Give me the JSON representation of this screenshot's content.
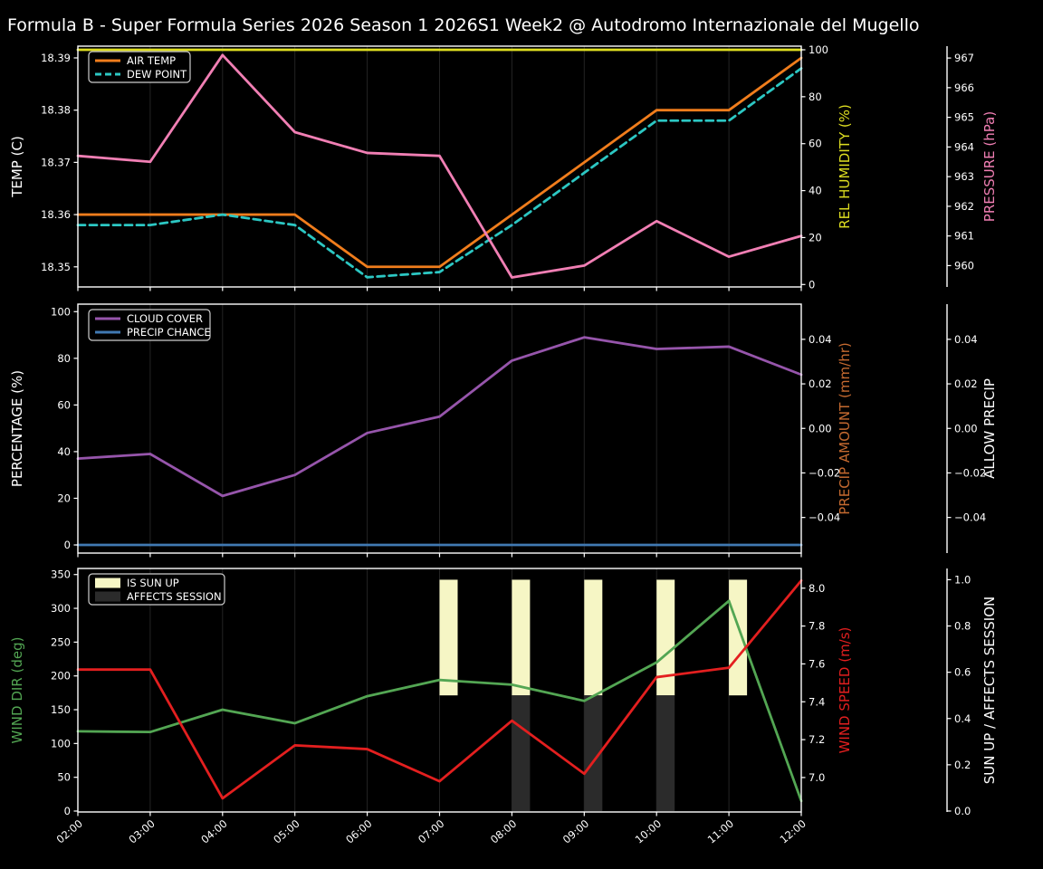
{
  "title": "Formula B - Super Formula Series 2026 Season 1 2026S1 Week2 @ Autodromo Internazionale del Mugello",
  "x_axis": {
    "hours": [
      2,
      3,
      4,
      5,
      6,
      7,
      8,
      9,
      10,
      11,
      12
    ],
    "labels": [
      "02:00",
      "03:00",
      "04:00",
      "05:00",
      "06:00",
      "07:00",
      "08:00",
      "09:00",
      "10:00",
      "11:00",
      "12:00"
    ]
  },
  "colors": {
    "background": "#000000",
    "text": "#ffffff",
    "grid": "#242424",
    "air_temp": "#f07d1c",
    "dew_point": "#2cc7c3",
    "rel_humidity": "#dede21",
    "pressure": "#f17fb4",
    "cloud_cover": "#9655ab",
    "precip_chance": "#4079b2",
    "precip_amount": "#c56a30",
    "wind_dir": "#53a653",
    "wind_speed": "#e31f1f",
    "sun_up_bar": "#f6f6c5",
    "affects_session_bar": "#2b2b2b"
  },
  "chart_data": [
    {
      "type": "line",
      "id": "temperature-panel",
      "x": [
        "02:00",
        "03:00",
        "04:00",
        "05:00",
        "06:00",
        "07:00",
        "08:00",
        "09:00",
        "10:00",
        "11:00",
        "12:00"
      ],
      "axes": {
        "left": {
          "id": "temp",
          "label": "TEMP (C)",
          "color": "#ffffff",
          "range": [
            18.34615,
            18.39225
          ],
          "ticks": [
            {
              "v": 18.35,
              "t": "18.35"
            },
            {
              "v": 18.36,
              "t": "18.36"
            },
            {
              "v": 18.37,
              "t": "18.37"
            },
            {
              "v": 18.38,
              "t": "18.38"
            },
            {
              "v": 18.39,
              "t": "18.39"
            }
          ]
        },
        "right": {
          "id": "humidity",
          "label": "REL HUMIDITY (%)",
          "color": "#dede21",
          "range": [
            -1.04,
            101.54
          ],
          "ticks": [
            {
              "v": 0,
              "t": "0"
            },
            {
              "v": 20,
              "t": "20"
            },
            {
              "v": 40,
              "t": "40"
            },
            {
              "v": 60,
              "t": "60"
            },
            {
              "v": 80,
              "t": "80"
            },
            {
              "v": 100,
              "t": "100"
            }
          ]
        },
        "far": {
          "id": "pressure",
          "label": "PRESSURE (hPa)",
          "color": "#f17fb4",
          "range": [
            959.28,
            967.4
          ],
          "ticks": [
            {
              "v": 960,
              "t": "960"
            },
            {
              "v": 961,
              "t": "961"
            },
            {
              "v": 962,
              "t": "962"
            },
            {
              "v": 963,
              "t": "963"
            },
            {
              "v": 964,
              "t": "964"
            },
            {
              "v": 965,
              "t": "965"
            },
            {
              "v": 966,
              "t": "966"
            },
            {
              "v": 967,
              "t": "967"
            }
          ]
        }
      },
      "series": [
        {
          "name": "AIR TEMP",
          "slug": "air-temp",
          "axis": "left",
          "color": "#f07d1c",
          "dash": false,
          "values": [
            18.36,
            18.36,
            18.36,
            18.36,
            18.35,
            18.35,
            18.36,
            18.37,
            18.38,
            18.38,
            18.39
          ]
        },
        {
          "name": "DEW POINT",
          "slug": "dew-point",
          "axis": "left",
          "color": "#2cc7c3",
          "dash": true,
          "values": [
            18.358,
            18.358,
            18.36,
            18.358,
            18.348,
            18.349,
            18.358,
            18.368,
            18.378,
            18.378,
            18.388
          ]
        },
        {
          "name": "REL HUMIDITY",
          "slug": "rel-humidity",
          "axis": "right",
          "color": "#dede21",
          "dash": false,
          "values": [
            100,
            100,
            100,
            100,
            100,
            100,
            100,
            100,
            100,
            100,
            100
          ]
        },
        {
          "name": "PRESSURE",
          "slug": "pressure",
          "axis": "far",
          "color": "#f17fb4",
          "dash": false,
          "values": [
            963.7,
            963.5,
            967.1,
            964.5,
            963.8,
            963.7,
            959.6,
            960.0,
            961.5,
            960.3,
            961.0
          ]
        }
      ],
      "legend": {
        "items": [
          {
            "label": "AIR TEMP",
            "swatch": "line",
            "color": "#f07d1c",
            "dash": false
          },
          {
            "label": "DEW POINT",
            "swatch": "line",
            "color": "#2cc7c3",
            "dash": true
          }
        ],
        "position": "upper-left",
        "width": 112
      },
      "bars": []
    },
    {
      "type": "line",
      "id": "precipitation-panel",
      "x": [
        "02:00",
        "03:00",
        "04:00",
        "05:00",
        "06:00",
        "07:00",
        "08:00",
        "09:00",
        "10:00",
        "11:00",
        "12:00"
      ],
      "axes": {
        "left": {
          "id": "percentage",
          "label": "PERCENTAGE (%)",
          "color": "#ffffff",
          "range": [
            -3.49,
            103.22
          ],
          "ticks": [
            {
              "v": 0,
              "t": "0"
            },
            {
              "v": 20,
              "t": "20"
            },
            {
              "v": 40,
              "t": "40"
            },
            {
              "v": 60,
              "t": "60"
            },
            {
              "v": 80,
              "t": "80"
            },
            {
              "v": 100,
              "t": "100"
            }
          ]
        },
        "right": {
          "id": "precip-amount",
          "label": "PRECIP AMOUNT (mm/hr)",
          "color": "#c56a30",
          "range": [
            -0.056,
            0.0558
          ],
          "ticks": [
            {
              "v": -0.04,
              "t": "−0.04"
            },
            {
              "v": -0.02,
              "t": "−0.02"
            },
            {
              "v": 0,
              "t": "0.00"
            },
            {
              "v": 0.02,
              "t": "0.02"
            },
            {
              "v": 0.04,
              "t": "0.04"
            }
          ]
        },
        "far": {
          "id": "allow-precip",
          "label": "ALLOW PRECIP",
          "color": "#ffffff",
          "range": [
            -0.056,
            0.0558
          ],
          "ticks": [
            {
              "v": -0.04,
              "t": "−0.04"
            },
            {
              "v": -0.02,
              "t": "−0.02"
            },
            {
              "v": 0,
              "t": "0.00"
            },
            {
              "v": 0.02,
              "t": "0.02"
            },
            {
              "v": 0.04,
              "t": "0.04"
            }
          ]
        }
      },
      "series": [
        {
          "name": "CLOUD COVER",
          "slug": "cloud-cover",
          "axis": "left",
          "color": "#9655ab",
          "dash": false,
          "values": [
            37,
            39,
            21,
            30,
            48,
            55,
            79,
            89,
            84,
            85,
            73
          ]
        },
        {
          "name": "PRECIP CHANCE",
          "slug": "precip-chance",
          "axis": "left",
          "color": "#4079b2",
          "dash": false,
          "values": [
            0,
            0,
            0,
            0,
            0,
            0,
            0,
            0,
            0,
            0,
            0
          ]
        }
      ],
      "legend": {
        "items": [
          {
            "label": "CLOUD COVER",
            "swatch": "line",
            "color": "#9655ab",
            "dash": false
          },
          {
            "label": "PRECIP CHANCE",
            "swatch": "line",
            "color": "#4079b2",
            "dash": false
          }
        ],
        "position": "upper-left",
        "width": 134
      },
      "bars": []
    },
    {
      "type": "line",
      "id": "wind-panel",
      "x": [
        "02:00",
        "03:00",
        "04:00",
        "05:00",
        "06:00",
        "07:00",
        "08:00",
        "09:00",
        "10:00",
        "11:00",
        "12:00"
      ],
      "axes": {
        "left": {
          "id": "wind-dir",
          "label": "WIND DIR (deg)",
          "color": "#53a653",
          "range": [
            -1.34,
            359.0
          ],
          "ticks": [
            {
              "v": 0,
              "t": "0"
            },
            {
              "v": 50,
              "t": "50"
            },
            {
              "v": 100,
              "t": "100"
            },
            {
              "v": 150,
              "t": "150"
            },
            {
              "v": 200,
              "t": "200"
            },
            {
              "v": 250,
              "t": "250"
            },
            {
              "v": 300,
              "t": "300"
            },
            {
              "v": 350,
              "t": "350"
            }
          ]
        },
        "right": {
          "id": "wind-speed",
          "label": "WIND SPEED (m/s)",
          "color": "#e31f1f",
          "range": [
            6.818,
            8.104
          ],
          "ticks": [
            {
              "v": 7.0,
              "t": "7.0"
            },
            {
              "v": 7.2,
              "t": "7.2"
            },
            {
              "v": 7.4,
              "t": "7.4"
            },
            {
              "v": 7.6,
              "t": "7.6"
            },
            {
              "v": 7.8,
              "t": "7.8"
            },
            {
              "v": 8.0,
              "t": "8.0"
            }
          ]
        },
        "far": {
          "id": "sun-up",
          "label": "SUN UP / AFFECTS SESSION",
          "color": "#ffffff",
          "range": [
            -0.004,
            1.0486
          ],
          "ticks": [
            {
              "v": 0.0,
              "t": "0.0"
            },
            {
              "v": 0.2,
              "t": "0.2"
            },
            {
              "v": 0.4,
              "t": "0.4"
            },
            {
              "v": 0.6,
              "t": "0.6"
            },
            {
              "v": 0.8,
              "t": "0.8"
            },
            {
              "v": 1.0,
              "t": "1.0"
            }
          ]
        }
      },
      "series": [
        {
          "name": "WIND DIR",
          "slug": "wind-dir",
          "axis": "left",
          "color": "#53a653",
          "dash": false,
          "values": [
            118,
            117,
            150,
            130,
            170,
            194,
            187,
            163,
            220,
            311,
            15
          ]
        },
        {
          "name": "WIND SPEED",
          "slug": "wind-speed",
          "axis": "right",
          "color": "#e31f1f",
          "dash": false,
          "values": [
            7.57,
            7.57,
            6.89,
            7.17,
            7.15,
            6.98,
            7.3,
            7.02,
            7.53,
            7.58,
            8.04
          ]
        }
      ],
      "legend": {
        "items": [
          {
            "label": "IS SUN UP",
            "swatch": "patch",
            "color": "#f6f6c5",
            "dash": false
          },
          {
            "label": "AFFECTS SESSION",
            "swatch": "patch",
            "color": "#2b2b2b",
            "dash": false
          }
        ],
        "position": "upper-left",
        "width": 150
      },
      "bars": [
        {
          "name": "IS SUN UP",
          "slug": "sun-up",
          "axis": "far",
          "color": "#f6f6c5",
          "hours": [
            7,
            8,
            9,
            10,
            11
          ],
          "from": 0.5,
          "to": 1.0
        },
        {
          "name": "AFFECTS SESSION",
          "slug": "affects-session",
          "axis": "far",
          "color": "#2b2b2b",
          "hours": [
            8,
            9,
            10
          ],
          "from": 0.0,
          "to": 0.5
        }
      ]
    }
  ]
}
